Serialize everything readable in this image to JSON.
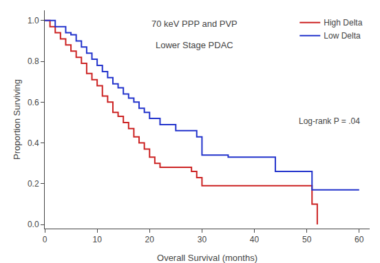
{
  "chart_data": {
    "type": "step",
    "title": "70 keV PPP and PVP",
    "subtitle": "Lower Stage PDAC",
    "x_label": "Overall Survival (months)",
    "y_label": "Proportion Surviving",
    "annotations": [
      "Log-rank P = .04"
    ],
    "xlim": [
      0,
      62
    ],
    "ylim": [
      -0.02,
      1.05
    ],
    "xticks": [
      0,
      10,
      20,
      30,
      40,
      50,
      60
    ],
    "yticks": [
      {
        "value": 0.0,
        "label": "0.0"
      },
      0.2,
      0.4,
      0.6,
      0.8,
      {
        "value": 1.0,
        "label": "1.0"
      }
    ],
    "grid": false,
    "legend": "upper right",
    "series": [
      {
        "name": "High Delta",
        "color": "#CC2222",
        "x": [
          0,
          1,
          2,
          3,
          4,
          5,
          6,
          7,
          8,
          9,
          10,
          11,
          12,
          13,
          14,
          15,
          16,
          17,
          18,
          19,
          20,
          21,
          22,
          25,
          28,
          29,
          30,
          33,
          36,
          38,
          42,
          44,
          50,
          51,
          52
        ],
        "values": [
          1.0,
          0.97,
          0.94,
          0.91,
          0.88,
          0.85,
          0.82,
          0.79,
          0.74,
          0.71,
          0.68,
          0.63,
          0.6,
          0.55,
          0.53,
          0.5,
          0.47,
          0.43,
          0.4,
          0.37,
          0.33,
          0.3,
          0.28,
          0.28,
          0.26,
          0.23,
          0.19,
          0.19,
          0.19,
          0.19,
          0.19,
          0.19,
          0.19,
          0.1,
          0.0
        ]
      },
      {
        "name": "Low Delta",
        "color": "#2233CC",
        "x": [
          0,
          2,
          4,
          5,
          6,
          7,
          8,
          9,
          10,
          11,
          12,
          13,
          14,
          15,
          16,
          17,
          18,
          19,
          20,
          22,
          25,
          27,
          29,
          30,
          32,
          35,
          40,
          43,
          44,
          50,
          51,
          52,
          60
        ],
        "values": [
          1.0,
          0.97,
          0.94,
          0.93,
          0.9,
          0.87,
          0.84,
          0.81,
          0.78,
          0.75,
          0.72,
          0.69,
          0.67,
          0.64,
          0.62,
          0.6,
          0.57,
          0.55,
          0.52,
          0.49,
          0.46,
          0.46,
          0.43,
          0.34,
          0.34,
          0.33,
          0.33,
          0.33,
          0.26,
          0.26,
          0.17,
          0.17,
          0.17
        ]
      }
    ]
  }
}
